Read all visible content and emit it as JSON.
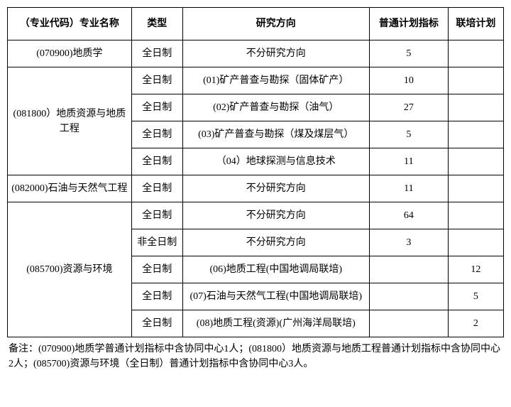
{
  "headers": {
    "major": "（专业代码）专业名称",
    "type": "类型",
    "direction": "研究方向",
    "plan": "普通计划指标",
    "joint": "联培计划"
  },
  "rows": [
    {
      "major": "(070900)地质学",
      "major_rowspan": 1,
      "type": "全日制",
      "direction": "不分研究方向",
      "plan": "5",
      "joint": ""
    },
    {
      "major": "(081800）地质资源与地质工程",
      "major_rowspan": 4,
      "type": "全日制",
      "direction": "(01)矿产普查与勘探（固体矿产）",
      "plan": "10",
      "joint": ""
    },
    {
      "type": "全日制",
      "direction": "(02)矿产普查与勘探（油气）",
      "plan": "27",
      "joint": ""
    },
    {
      "type": "全日制",
      "direction": "(03)矿产普查与勘探（煤及煤层气）",
      "plan": "5",
      "joint": ""
    },
    {
      "type": "全日制",
      "direction": "（04）地球探测与信息技术",
      "plan": "11",
      "joint": ""
    },
    {
      "major": "(082000)石油与天然气工程",
      "major_rowspan": 1,
      "type": "全日制",
      "direction": "不分研究方向",
      "plan": "11",
      "joint": ""
    },
    {
      "major": "(085700)资源与环境",
      "major_rowspan": 5,
      "type": "全日制",
      "direction": "不分研究方向",
      "plan": "64",
      "joint": ""
    },
    {
      "type": "非全日制",
      "direction": "不分研究方向",
      "plan": "3",
      "joint": ""
    },
    {
      "type": "全日制",
      "direction": "(06)地质工程(中国地调局联培)",
      "plan": "",
      "joint": "12"
    },
    {
      "type": "全日制",
      "direction": "(07)石油与天然气工程(中国地调局联培)",
      "plan": "",
      "joint": "5"
    },
    {
      "type": "全日制",
      "direction": "(08)地质工程(资源)(广州海洋局联培)",
      "plan": "",
      "joint": "2"
    }
  ],
  "note": "备注：(070900)地质学普通计划指标中含协同中心1人；(081800）地质资源与地质工程普通计划指标中含协同中心2人；(085700)资源与环境（全日制）普通计划指标中含协同中心3人。"
}
